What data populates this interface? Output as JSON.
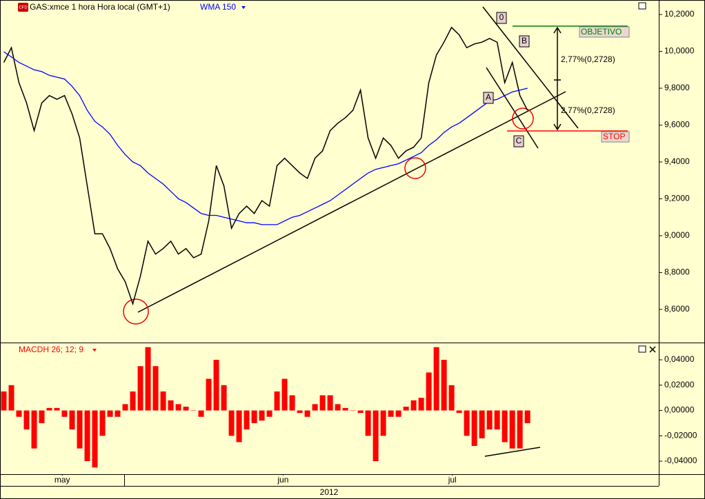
{
  "chart_data": [
    {
      "type": "line",
      "icon": "CFD",
      "x": [
        0,
        1,
        2,
        3,
        4,
        5,
        6,
        7,
        8,
        9,
        10,
        11,
        12,
        13,
        14,
        15,
        16,
        17,
        18,
        19,
        20,
        21,
        22,
        23,
        24,
        25,
        26,
        27,
        28,
        29,
        30,
        31,
        32,
        33,
        34,
        35,
        36,
        37,
        38,
        39,
        40,
        41,
        42,
        43,
        44,
        45,
        46,
        47,
        48,
        49,
        50,
        51,
        52,
        53,
        54,
        55,
        56,
        57,
        58,
        59,
        60,
        61,
        62,
        63,
        64,
        65,
        66,
        67,
        68,
        69
      ],
      "xlim": [
        -0.5,
        86.3
      ],
      "xticks": [
        {
          "value": 7.7,
          "label": "may"
        },
        {
          "value": 36.8,
          "label": "jun"
        },
        {
          "value": 59.1,
          "label": "jul"
        }
      ],
      "year": "2012",
      "series": [
        {
          "name": "GAS:xmce 1 hora Hora local (GMT+1)",
          "color": "#000000",
          "values": [
            9.94,
            10.02,
            9.83,
            9.72,
            9.57,
            9.72,
            9.76,
            9.74,
            9.76,
            9.66,
            9.53,
            9.27,
            9.01,
            9.01,
            8.93,
            8.82,
            8.75,
            8.63,
            8.78,
            8.97,
            8.9,
            8.93,
            8.97,
            8.9,
            8.93,
            8.88,
            8.9,
            9.08,
            9.38,
            9.27,
            9.04,
            9.12,
            9.16,
            9.12,
            9.19,
            9.16,
            9.38,
            9.42,
            9.38,
            9.34,
            9.31,
            9.42,
            9.46,
            9.57,
            9.61,
            9.64,
            9.68,
            9.79,
            9.53,
            9.42,
            9.53,
            9.49,
            9.42,
            9.46,
            9.48,
            9.53,
            9.83,
            9.98,
            10.05,
            10.13,
            10.09,
            10.02,
            10.04,
            10.05,
            10.07,
            10.05,
            9.83,
            9.94,
            9.76,
            9.68
          ]
        },
        {
          "name": "WMA 150",
          "color": "#0000ff",
          "values": [
            9.998,
            9.97,
            9.94,
            9.92,
            9.9,
            9.89,
            9.87,
            9.86,
            9.85,
            9.81,
            9.76,
            9.68,
            9.62,
            9.59,
            9.55,
            9.49,
            9.44,
            9.4,
            9.38,
            9.34,
            9.31,
            9.28,
            9.24,
            9.2,
            9.18,
            9.15,
            9.12,
            9.11,
            9.11,
            9.1,
            9.09,
            9.08,
            9.07,
            9.07,
            9.06,
            9.06,
            9.06,
            9.08,
            9.1,
            9.11,
            9.13,
            9.15,
            9.17,
            9.19,
            9.22,
            9.25,
            9.28,
            9.31,
            9.34,
            9.36,
            9.37,
            9.38,
            9.39,
            9.41,
            9.43,
            9.45,
            9.49,
            9.52,
            9.56,
            9.59,
            9.61,
            9.64,
            9.67,
            9.7,
            9.73,
            9.74,
            9.76,
            9.78,
            9.79,
            9.8
          ]
        }
      ],
      "ylim": [
        8.42,
        10.275
      ],
      "yticks": [
        {
          "value": 8.6,
          "label": "8,6000"
        },
        {
          "value": 8.8,
          "label": "8,8000"
        },
        {
          "value": 9.0,
          "label": "9,0000"
        },
        {
          "value": 9.2,
          "label": "9,2000"
        },
        {
          "value": 9.4,
          "label": "9,4000"
        },
        {
          "value": 9.6,
          "label": "9,6000"
        },
        {
          "value": 9.8,
          "label": "9,8000"
        },
        {
          "value": 10.0,
          "label": "10,0000"
        },
        {
          "value": 10.2,
          "label": "10,2000"
        }
      ],
      "annotations": [
        {
          "text": "0"
        },
        {
          "text": "A"
        },
        {
          "text": "B"
        },
        {
          "text": "C"
        },
        {
          "text": "OBJETIVO",
          "value": 10.137,
          "color": "#008000"
        },
        {
          "text": "STOP",
          "value": 9.568,
          "color": "#ff0000"
        },
        {
          "text": "2,77%(0,2728)"
        },
        {
          "text": "2,77%(0,2728)"
        }
      ]
    },
    {
      "type": "bar",
      "series": [
        {
          "name": "MACDH 26; 12; 9",
          "color": "#ff0000",
          "values": [
            0.015,
            0.02,
            -0.005,
            -0.015,
            -0.03,
            -0.01,
            0.002,
            0.002,
            -0.005,
            -0.015,
            -0.03,
            -0.04,
            -0.045,
            -0.02,
            -0.005,
            -0.005,
            0.005,
            0.015,
            0.035,
            0.05,
            0.035,
            0.015,
            0.008,
            0.005,
            0.003,
            0.0,
            -0.005,
            0.025,
            0.04,
            0.02,
            -0.02,
            -0.025,
            -0.015,
            -0.01,
            -0.008,
            -0.005,
            0.015,
            0.025,
            0.012,
            -0.002,
            -0.005,
            0.005,
            0.012,
            0.012,
            0.005,
            0.002,
            0.0,
            -0.002,
            -0.02,
            -0.04,
            -0.02,
            -0.005,
            -0.005,
            0.003,
            0.008,
            0.01,
            0.03,
            0.05,
            0.04,
            0.02,
            -0.002,
            -0.02,
            -0.028,
            -0.022,
            -0.015,
            -0.015,
            -0.025,
            -0.03,
            -0.03,
            -0.01
          ]
        }
      ],
      "ylim": [
        -0.0503,
        0.052
      ],
      "yticks": [
        {
          "value": -0.04,
          "label": "-0,04000"
        },
        {
          "value": -0.02,
          "label": "-0,02000"
        },
        {
          "value": 0,
          "label": "0,00000"
        },
        {
          "value": 0.02,
          "label": "0,02000"
        },
        {
          "value": 0.04,
          "label": "0,04000"
        }
      ]
    }
  ]
}
